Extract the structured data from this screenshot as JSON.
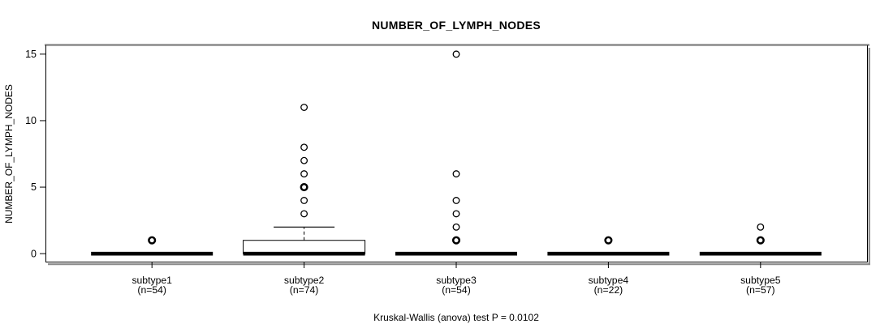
{
  "chart_data": {
    "type": "boxplot",
    "title": "NUMBER_OF_LYMPH_NODES",
    "ylabel": "NUMBER_OF_LYMPH_NODES",
    "xlabel": "",
    "caption": "Kruskal-Wallis (anova) test P = 0.0102",
    "y_ticks": [
      0,
      5,
      10,
      15
    ],
    "ylim": [
      -0.6,
      15.6
    ],
    "grid": false,
    "legend": "none",
    "groups": [
      {
        "label": "subtype1",
        "sublabel": "(n=54)",
        "n": 54,
        "stats": {
          "whisker_low": 0,
          "q1": 0,
          "median": 0,
          "q3": 0,
          "whisker_high": 0
        },
        "outliers": [
          {
            "value": 1,
            "bold": true
          }
        ]
      },
      {
        "label": "subtype2",
        "sublabel": "(n=74)",
        "n": 74,
        "stats": {
          "whisker_low": 0,
          "q1": 0,
          "median": 0,
          "q3": 1,
          "whisker_high": 2
        },
        "outliers": [
          {
            "value": 3,
            "bold": false
          },
          {
            "value": 4,
            "bold": false
          },
          {
            "value": 5,
            "bold": true
          },
          {
            "value": 6,
            "bold": false
          },
          {
            "value": 7,
            "bold": false
          },
          {
            "value": 8,
            "bold": false
          },
          {
            "value": 11,
            "bold": false
          }
        ]
      },
      {
        "label": "subtype3",
        "sublabel": "(n=54)",
        "n": 54,
        "stats": {
          "whisker_low": 0,
          "q1": 0,
          "median": 0,
          "q3": 0,
          "whisker_high": 0
        },
        "outliers": [
          {
            "value": 1,
            "bold": true
          },
          {
            "value": 2,
            "bold": false
          },
          {
            "value": 3,
            "bold": false
          },
          {
            "value": 4,
            "bold": false
          },
          {
            "value": 6,
            "bold": false
          },
          {
            "value": 15,
            "bold": false
          }
        ]
      },
      {
        "label": "subtype4",
        "sublabel": "(n=22)",
        "n": 22,
        "stats": {
          "whisker_low": 0,
          "q1": 0,
          "median": 0,
          "q3": 0,
          "whisker_high": 0
        },
        "outliers": [
          {
            "value": 1,
            "bold": true
          }
        ]
      },
      {
        "label": "subtype5",
        "sublabel": "(n=57)",
        "n": 57,
        "stats": {
          "whisker_low": 0,
          "q1": 0,
          "median": 0,
          "q3": 0,
          "whisker_high": 0
        },
        "outliers": [
          {
            "value": 1,
            "bold": true
          },
          {
            "value": 2,
            "bold": false
          }
        ]
      }
    ],
    "colors": {
      "line": "#000000",
      "box_fill": "#ffffff",
      "frame_shadow": "#8a8a8a",
      "background": "#ffffff"
    }
  }
}
